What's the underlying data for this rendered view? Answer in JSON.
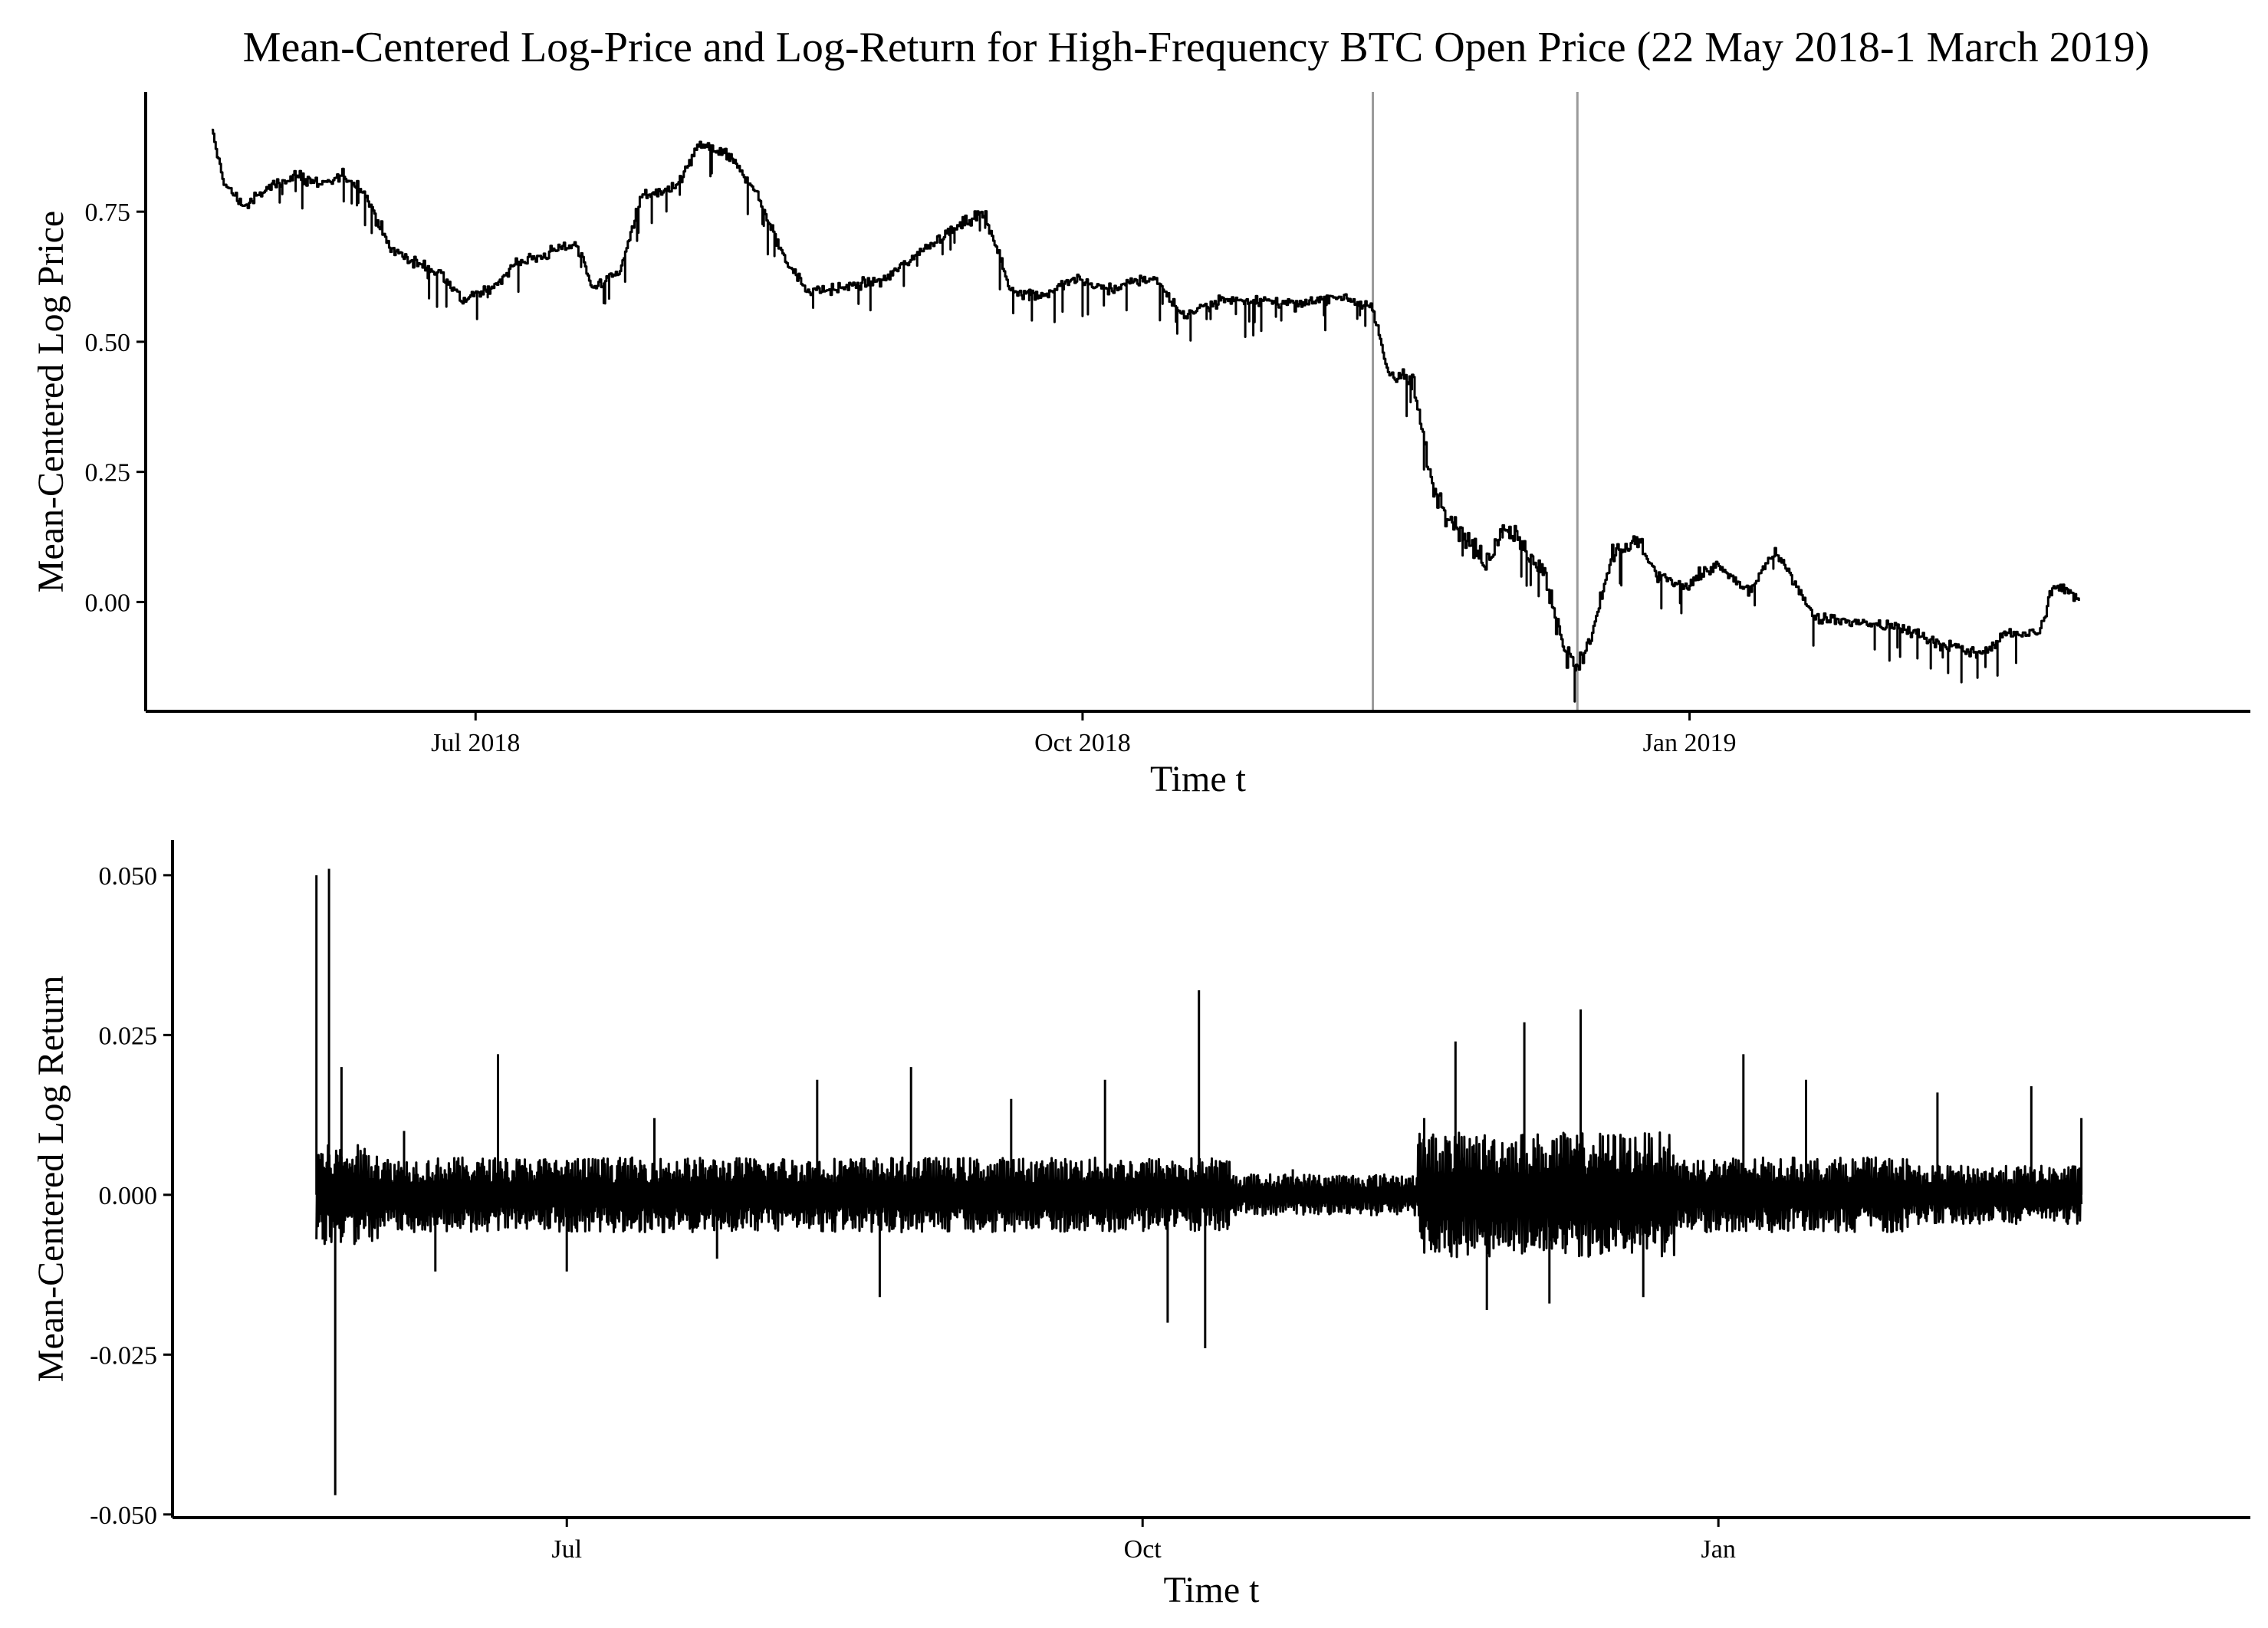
{
  "chart_data": [
    {
      "type": "line",
      "title": "Mean-Centered Log-Price and Log-Return for High-Frequency BTC Open Price (22 May 2018-1 March 2019)",
      "xlabel": "Time t",
      "ylabel": "Mean-Centered Log Price",
      "xlim": [
        "2018-05-12",
        "2019-03-27"
      ],
      "ylim": [
        -0.21,
        0.98
      ],
      "x_ticks": [
        {
          "date": "2018-07-01",
          "label": "Jul 2018"
        },
        {
          "date": "2018-10-01",
          "label": "Oct 2018"
        },
        {
          "date": "2019-01-01",
          "label": "Jan 2019"
        }
      ],
      "y_ticks": [
        {
          "value": 0.0,
          "label": "0.00"
        },
        {
          "value": 0.25,
          "label": "0.25"
        },
        {
          "value": 0.5,
          "label": "0.50"
        },
        {
          "value": 0.75,
          "label": "0.75"
        }
      ],
      "vertical_lines": [
        "2018-11-14",
        "2018-12-15"
      ],
      "grid": false,
      "series": [
        {
          "color": "#000000",
          "x": [
            "2018-05-22",
            "2018-05-24",
            "2018-05-27",
            "2018-05-31",
            "2018-06-04",
            "2018-06-08",
            "2018-06-11",
            "2018-06-14",
            "2018-06-18",
            "2018-06-22",
            "2018-06-26",
            "2018-06-29",
            "2018-07-03",
            "2018-07-07",
            "2018-07-12",
            "2018-07-16",
            "2018-07-19",
            "2018-07-23",
            "2018-07-26",
            "2018-07-31",
            "2018-08-04",
            "2018-08-08",
            "2018-08-12",
            "2018-08-16",
            "2018-08-20",
            "2018-08-24",
            "2018-08-28",
            "2018-09-01",
            "2018-09-05",
            "2018-09-08",
            "2018-09-12",
            "2018-09-16",
            "2018-09-20",
            "2018-09-25",
            "2018-09-30",
            "2018-10-05",
            "2018-10-10",
            "2018-10-12",
            "2018-10-16",
            "2018-10-22",
            "2018-10-28",
            "2018-11-03",
            "2018-11-09",
            "2018-11-14",
            "2018-11-16",
            "2018-11-20",
            "2018-11-23",
            "2018-11-26",
            "2018-11-28",
            "2018-12-01",
            "2018-12-04",
            "2018-12-07",
            "2018-12-10",
            "2018-12-13",
            "2018-12-15",
            "2018-12-17",
            "2018-12-20",
            "2018-12-24",
            "2018-12-27",
            "2018-12-31",
            "2019-01-05",
            "2019-01-10",
            "2019-01-14",
            "2019-01-20",
            "2019-01-27",
            "2019-02-02",
            "2019-02-08",
            "2019-02-14",
            "2019-02-18",
            "2019-02-23",
            "2019-02-25",
            "2019-03-01"
          ],
          "y": [
            0.9,
            0.8,
            0.76,
            0.8,
            0.82,
            0.8,
            0.82,
            0.79,
            0.68,
            0.65,
            0.63,
            0.58,
            0.6,
            0.65,
            0.67,
            0.69,
            0.6,
            0.64,
            0.78,
            0.79,
            0.88,
            0.86,
            0.8,
            0.68,
            0.6,
            0.6,
            0.61,
            0.62,
            0.66,
            0.69,
            0.72,
            0.75,
            0.6,
            0.59,
            0.62,
            0.6,
            0.62,
            0.62,
            0.55,
            0.58,
            0.58,
            0.57,
            0.59,
            0.56,
            0.45,
            0.42,
            0.22,
            0.16,
            0.12,
            0.08,
            0.15,
            0.1,
            0.05,
            -0.09,
            -0.13,
            -0.07,
            0.08,
            0.12,
            0.05,
            0.03,
            0.07,
            0.02,
            0.1,
            -0.03,
            -0.04,
            -0.05,
            -0.08,
            -0.1,
            -0.06,
            -0.06,
            0.03,
            0.01
          ]
        }
      ]
    },
    {
      "type": "line",
      "title": "",
      "xlabel": "Time t",
      "ylabel": "Mean-Centered Log Return",
      "xlim": [
        "2018-04-29",
        "2019-03-27"
      ],
      "ylim": [
        -0.0505,
        0.0555
      ],
      "x_ticks": [
        {
          "date": "2018-07-01",
          "label": "Jul"
        },
        {
          "date": "2018-10-01",
          "label": "Oct"
        },
        {
          "date": "2019-01-01",
          "label": "Jan"
        }
      ],
      "y_ticks": [
        {
          "value": -0.05,
          "label": "-0.050"
        },
        {
          "value": -0.025,
          "label": "-0.025"
        },
        {
          "value": 0.0,
          "label": "0.000"
        },
        {
          "value": 0.025,
          "label": "0.025"
        },
        {
          "value": 0.05,
          "label": "0.050"
        }
      ],
      "grid": false,
      "series": [
        {
          "color": "#000000",
          "x": [
            "2018-05-22",
            "2018-05-23",
            "2018-05-24",
            "2018-05-25",
            "2018-05-26",
            "2018-06-05",
            "2018-06-10",
            "2018-06-20",
            "2018-07-01",
            "2018-07-15",
            "2018-07-25",
            "2018-08-10",
            "2018-08-20",
            "2018-08-25",
            "2018-09-10",
            "2018-09-25",
            "2018-10-05",
            "2018-10-10",
            "2018-10-11",
            "2018-10-12",
            "2018-10-25",
            "2018-11-10",
            "2018-11-15",
            "2018-11-20",
            "2018-11-25",
            "2018-12-01",
            "2018-12-05",
            "2018-12-10",
            "2018-12-20",
            "2019-01-05",
            "2019-01-15",
            "2019-02-05",
            "2019-02-20",
            "2019-02-28"
          ],
          "y": [
            0.05,
            -0.007,
            0.051,
            -0.047,
            0.02,
            0.01,
            -0.012,
            0.022,
            -0.012,
            0.012,
            -0.01,
            0.018,
            -0.016,
            0.02,
            0.015,
            0.018,
            -0.02,
            0.032,
            -0.024,
            0.005,
            0.004,
            0.003,
            0.012,
            0.024,
            -0.018,
            0.027,
            -0.017,
            0.029,
            -0.016,
            0.022,
            0.018,
            0.016,
            0.017,
            0.012
          ]
        }
      ]
    }
  ]
}
